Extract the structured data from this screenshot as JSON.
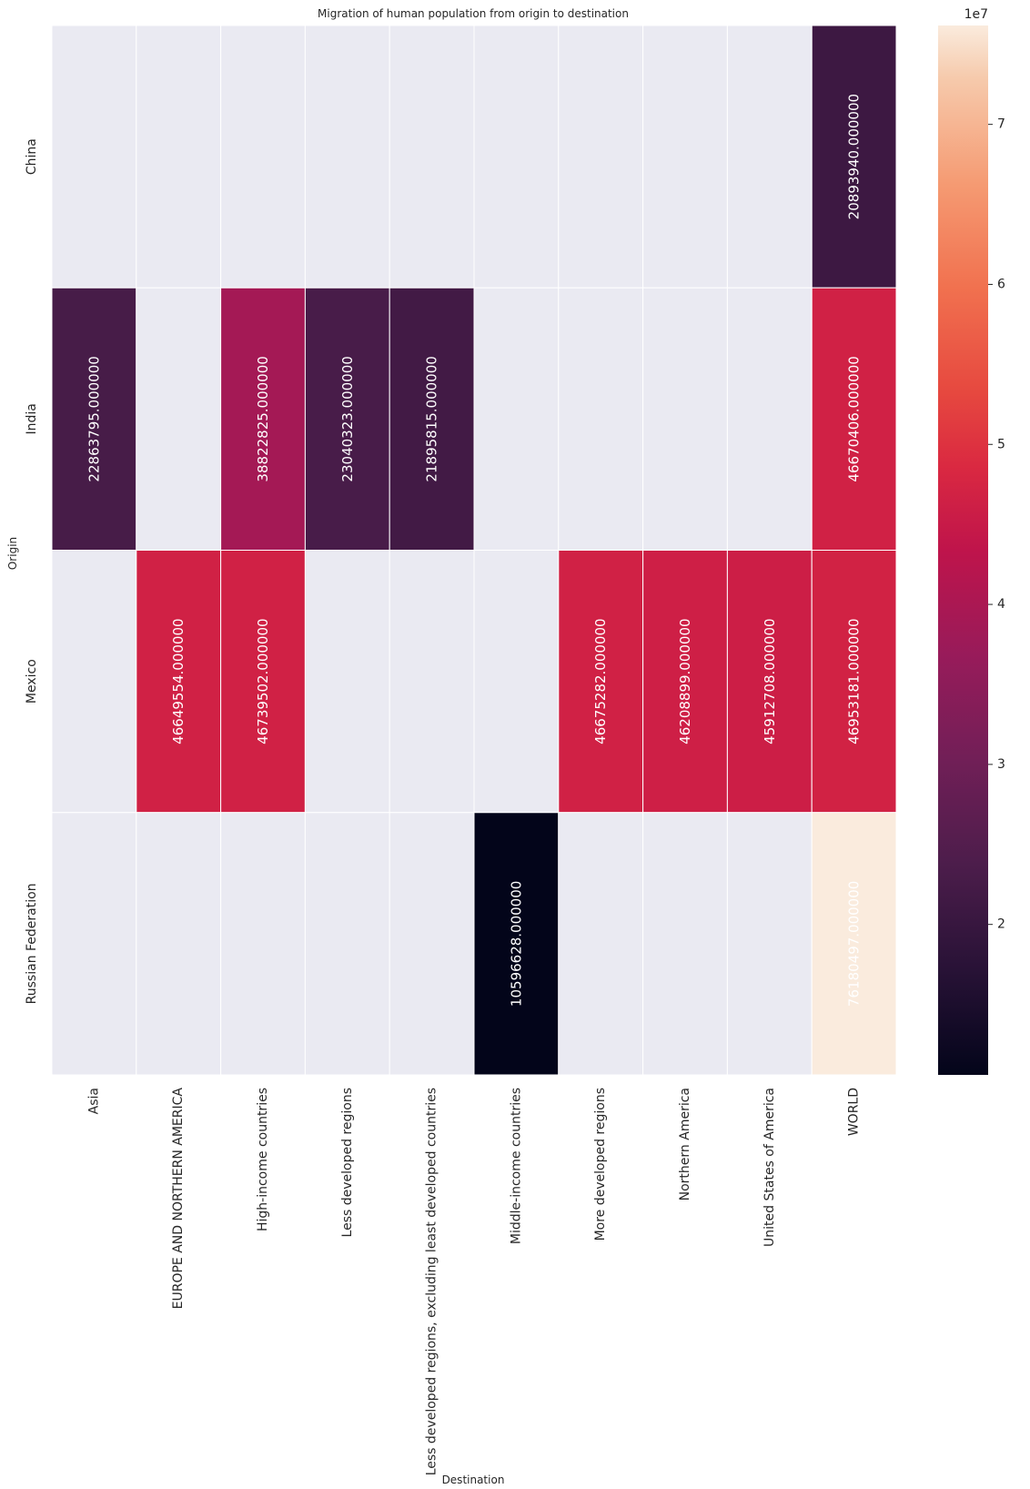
{
  "chart_data": {
    "type": "heatmap",
    "title": "Migration of human population from origin to destination",
    "xlabel": "Destination",
    "ylabel": "Origin",
    "x_categories": [
      "Asia",
      "EUROPE AND NORTHERN AMERICA",
      "High-income countries",
      "Less developed regions",
      "Less developed regions, excluding least developed countries",
      "Middle-income countries",
      "More developed regions",
      "Northern America",
      "United States of America",
      "WORLD"
    ],
    "y_categories": [
      "China",
      "India",
      "Mexico",
      "Russian Federation"
    ],
    "values": [
      [
        null,
        null,
        null,
        null,
        null,
        null,
        null,
        null,
        null,
        20893940
      ],
      [
        22863795,
        null,
        38822825,
        23040323,
        21895815,
        null,
        null,
        null,
        null,
        46670406
      ],
      [
        null,
        46649554,
        46739502,
        null,
        null,
        null,
        46675282,
        46208899,
        45912708,
        46953181
      ],
      [
        null,
        null,
        null,
        null,
        null,
        10596628,
        null,
        null,
        null,
        76180497
      ]
    ],
    "cell_labels": [
      [
        null,
        null,
        null,
        null,
        null,
        null,
        null,
        null,
        null,
        "20893940.000000"
      ],
      [
        "22863795.000000",
        null,
        "38822825.000000",
        "23040323.000000",
        "21895815.000000",
        null,
        null,
        null,
        null,
        "46670406.000000"
      ],
      [
        null,
        "46649554.000000",
        "46739502.000000",
        null,
        null,
        null,
        "46675282.000000",
        "46208899.000000",
        "45912708.000000",
        "46953181.000000"
      ],
      [
        null,
        null,
        null,
        null,
        null,
        "10596628.000000",
        null,
        null,
        null,
        "76180497.000000"
      ]
    ],
    "colormap": "rocket",
    "missing_color": "#eaeaf2",
    "colorbar": {
      "range": [
        10596628,
        76180497
      ],
      "tick_labels": [
        "2",
        "3",
        "4",
        "5",
        "6",
        "7"
      ],
      "tick_values": [
        20000000,
        30000000,
        40000000,
        50000000,
        60000000,
        70000000
      ],
      "offset_label": "1e7"
    }
  }
}
